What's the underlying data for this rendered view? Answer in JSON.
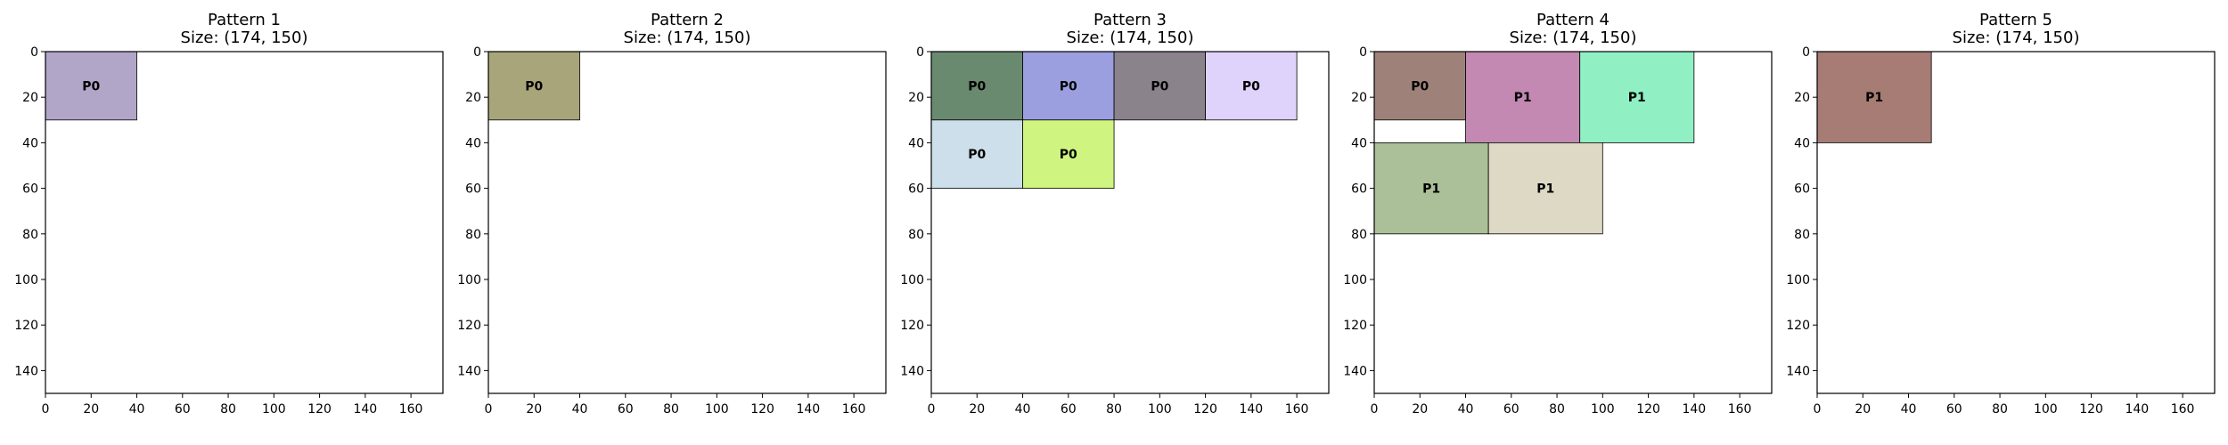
{
  "chart_data": [
    {
      "type": "rectangle-packing",
      "title": "Pattern 1",
      "subtitle": "Size: (174, 150)",
      "xlim": [
        0,
        174
      ],
      "ylim": [
        150,
        0
      ],
      "xticks": [
        0,
        20,
        40,
        60,
        80,
        100,
        120,
        140,
        160
      ],
      "yticks": [
        0,
        20,
        40,
        60,
        80,
        100,
        120,
        140
      ],
      "pieces": [
        {
          "label": "P0",
          "x": 0,
          "y": 0,
          "w": 40,
          "h": 30,
          "color": "#b2a6c8"
        }
      ]
    },
    {
      "type": "rectangle-packing",
      "title": "Pattern 2",
      "subtitle": "Size: (174, 150)",
      "xlim": [
        0,
        174
      ],
      "ylim": [
        150,
        0
      ],
      "xticks": [
        0,
        20,
        40,
        60,
        80,
        100,
        120,
        140,
        160
      ],
      "yticks": [
        0,
        20,
        40,
        60,
        80,
        100,
        120,
        140
      ],
      "pieces": [
        {
          "label": "P0",
          "x": 0,
          "y": 0,
          "w": 40,
          "h": 30,
          "color": "#a8a57a"
        }
      ]
    },
    {
      "type": "rectangle-packing",
      "title": "Pattern 3",
      "subtitle": "Size: (174, 150)",
      "xlim": [
        0,
        174
      ],
      "ylim": [
        150,
        0
      ],
      "xticks": [
        0,
        20,
        40,
        60,
        80,
        100,
        120,
        140,
        160
      ],
      "yticks": [
        0,
        20,
        40,
        60,
        80,
        100,
        120,
        140
      ],
      "pieces": [
        {
          "label": "P0",
          "x": 0,
          "y": 0,
          "w": 40,
          "h": 30,
          "color": "#6a8a6f"
        },
        {
          "label": "P0",
          "x": 40,
          "y": 0,
          "w": 40,
          "h": 30,
          "color": "#9b9fe0"
        },
        {
          "label": "P0",
          "x": 80,
          "y": 0,
          "w": 40,
          "h": 30,
          "color": "#8a838c"
        },
        {
          "label": "P0",
          "x": 120,
          "y": 0,
          "w": 40,
          "h": 30,
          "color": "#dfd2fb"
        },
        {
          "label": "P0",
          "x": 0,
          "y": 30,
          "w": 40,
          "h": 30,
          "color": "#cddfeb"
        },
        {
          "label": "P0",
          "x": 40,
          "y": 30,
          "w": 40,
          "h": 30,
          "color": "#d0f480"
        }
      ]
    },
    {
      "type": "rectangle-packing",
      "title": "Pattern 4",
      "subtitle": "Size: (174, 150)",
      "xlim": [
        0,
        174
      ],
      "ylim": [
        150,
        0
      ],
      "xticks": [
        0,
        20,
        40,
        60,
        80,
        100,
        120,
        140,
        160
      ],
      "yticks": [
        0,
        20,
        40,
        60,
        80,
        100,
        120,
        140
      ],
      "pieces": [
        {
          "label": "P0",
          "x": 0,
          "y": 0,
          "w": 40,
          "h": 30,
          "color": "#9e8279"
        },
        {
          "label": "P1",
          "x": 40,
          "y": 0,
          "w": 50,
          "h": 40,
          "color": "#c389b2"
        },
        {
          "label": "P1",
          "x": 90,
          "y": 0,
          "w": 50,
          "h": 40,
          "color": "#90f0c4"
        },
        {
          "label": "P1",
          "x": 0,
          "y": 40,
          "w": 50,
          "h": 40,
          "color": "#abbf98"
        },
        {
          "label": "P1",
          "x": 50,
          "y": 40,
          "w": 50,
          "h": 40,
          "color": "#ded9c4"
        }
      ]
    },
    {
      "type": "rectangle-packing",
      "title": "Pattern 5",
      "subtitle": "Size: (174, 150)",
      "xlim": [
        0,
        174
      ],
      "ylim": [
        150,
        0
      ],
      "xticks": [
        0,
        20,
        40,
        60,
        80,
        100,
        120,
        140,
        160
      ],
      "yticks": [
        0,
        20,
        40,
        60,
        80,
        100,
        120,
        140
      ],
      "pieces": [
        {
          "label": "P1",
          "x": 0,
          "y": 0,
          "w": 50,
          "h": 40,
          "color": "#a67c74"
        }
      ]
    }
  ]
}
